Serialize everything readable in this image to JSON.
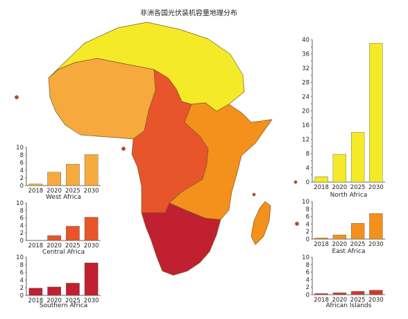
{
  "title": "非洲各国光伏装机容量地理分布",
  "colors": {
    "north": "#f4ea28",
    "west": "#f6aa3d",
    "east": "#f4901c",
    "central": "#e8552a",
    "southern": "#c0202f",
    "islands": "#d03a2e",
    "border": "#7a5a2a",
    "axis": "#333333"
  },
  "chart_data": [
    {
      "type": "bar",
      "region": "north",
      "categories": [
        "2018",
        "2020",
        "2025",
        "2030"
      ],
      "series": [
        {
          "name": "North Africa",
          "values": [
            1.5,
            7.8,
            14,
            39
          ]
        }
      ],
      "xlabel": "North Africa",
      "ylim": [
        0,
        40
      ],
      "yticks": [
        "0",
        "2",
        "4",
        "6",
        "8",
        "10",
        "12",
        "14",
        "16",
        "18",
        "20",
        "22",
        "24",
        "26",
        "28",
        "30",
        "32",
        "34",
        "36",
        "38",
        "40"
      ],
      "grid": false
    },
    {
      "type": "bar",
      "region": "west",
      "categories": [
        "2018",
        "2020",
        "2025",
        "2030"
      ],
      "series": [
        {
          "name": "West Africa",
          "values": [
            0.4,
            3.5,
            5.6,
            8.1
          ]
        }
      ],
      "xlabel": "West Africa",
      "ylim": [
        0,
        10
      ],
      "yticks": [
        "0",
        "2",
        "4",
        "6",
        "8",
        "10"
      ],
      "grid": false
    },
    {
      "type": "bar",
      "region": "central",
      "categories": [
        "2018",
        "2020",
        "2025",
        "2030"
      ],
      "series": [
        {
          "name": "Central Africa",
          "values": [
            0,
            1.3,
            3.8,
            6.2
          ]
        }
      ],
      "xlabel": "Central Africa",
      "ylim": [
        0,
        10
      ],
      "yticks": [
        "0",
        "2",
        "4",
        "6",
        "8",
        "10"
      ],
      "grid": false
    },
    {
      "type": "bar",
      "region": "southern",
      "categories": [
        "2018",
        "2020",
        "2025",
        "2030"
      ],
      "series": [
        {
          "name": "Southern Africa",
          "values": [
            1.9,
            2.2,
            3.2,
            8.5
          ]
        }
      ],
      "xlabel": "Southern Africa",
      "ylim": [
        0,
        10
      ],
      "yticks": [
        "0",
        "2",
        "4",
        "6",
        "8",
        "10"
      ],
      "grid": false
    },
    {
      "type": "bar",
      "region": "east",
      "categories": [
        "2018",
        "2020",
        "2025",
        "2030"
      ],
      "series": [
        {
          "name": "East Africa",
          "values": [
            0.3,
            1.1,
            4.2,
            6.8
          ]
        }
      ],
      "xlabel": "East Africa",
      "ylim": [
        0,
        10
      ],
      "yticks": [
        "0",
        "2",
        "4",
        "6",
        "8",
        "10"
      ],
      "grid": false
    },
    {
      "type": "bar",
      "region": "islands",
      "categories": [
        "2018",
        "2020",
        "2025",
        "2030"
      ],
      "series": [
        {
          "name": "African Islands",
          "values": [
            0.3,
            0.5,
            0.9,
            1.2
          ]
        }
      ],
      "xlabel": "African Islands",
      "ylim": [
        0,
        10
      ],
      "yticks": [
        "0",
        "2",
        "4",
        "6",
        "8",
        "10"
      ],
      "grid": false
    }
  ]
}
